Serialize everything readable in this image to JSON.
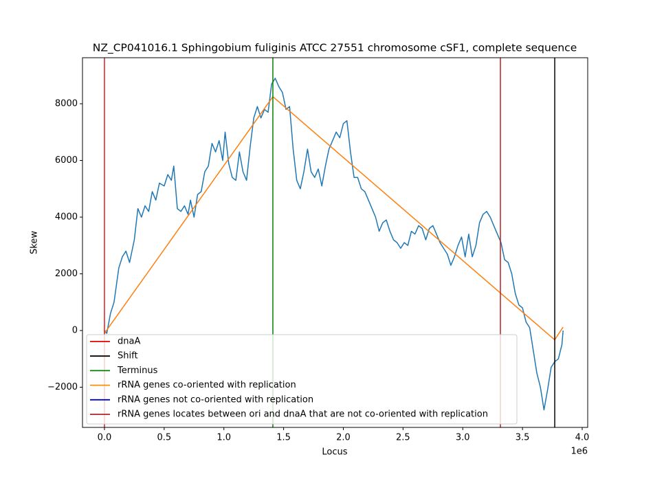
{
  "chart_data": {
    "type": "line",
    "title": "NZ_CP041016.1 Sphingobium fuliginis ATCC 27551 chromosome cSF1, complete sequence",
    "xlabel": "Locus",
    "ylabel": "Skew",
    "x_offset_label": "1e6",
    "xlim": [
      -184000,
      4046000
    ],
    "ylim": [
      -3418,
      9624
    ],
    "xticks": [
      {
        "value": 0,
        "label": "0.0"
      },
      {
        "value": 500000,
        "label": "0.5"
      },
      {
        "value": 1000000,
        "label": "1.0"
      },
      {
        "value": 1500000,
        "label": "1.5"
      },
      {
        "value": 2000000,
        "label": "2.0"
      },
      {
        "value": 2500000,
        "label": "2.5"
      },
      {
        "value": 3000000,
        "label": "3.0"
      },
      {
        "value": 3500000,
        "label": "3.5"
      },
      {
        "value": 4000000,
        "label": "4.0"
      }
    ],
    "yticks": [
      {
        "value": -2000,
        "label": "−2000"
      },
      0,
      2000,
      4000,
      6000,
      8000
    ],
    "series": [
      {
        "color": "#1f77b4",
        "x": [
          0,
          20000,
          50000,
          80000,
          120000,
          150000,
          180000,
          210000,
          250000,
          280000,
          310000,
          340000,
          370000,
          400000,
          430000,
          460000,
          500000,
          530000,
          560000,
          580000,
          610000,
          640000,
          670000,
          700000,
          720000,
          750000,
          780000,
          810000,
          840000,
          870000,
          900000,
          930000,
          960000,
          990000,
          1010000,
          1040000,
          1070000,
          1100000,
          1130000,
          1160000,
          1190000,
          1220000,
          1250000,
          1280000,
          1310000,
          1340000,
          1370000,
          1400000,
          1430000,
          1460000,
          1490000,
          1520000,
          1550000,
          1580000,
          1610000,
          1640000,
          1670000,
          1700000,
          1730000,
          1760000,
          1790000,
          1820000,
          1850000,
          1880000,
          1910000,
          1940000,
          1970000,
          2000000,
          2030000,
          2060000,
          2090000,
          2120000,
          2150000,
          2180000,
          2210000,
          2240000,
          2270000,
          2300000,
          2330000,
          2360000,
          2390000,
          2420000,
          2450000,
          2480000,
          2510000,
          2540000,
          2570000,
          2600000,
          2630000,
          2660000,
          2690000,
          2720000,
          2750000,
          2780000,
          2810000,
          2840000,
          2870000,
          2900000,
          2930000,
          2960000,
          2990000,
          3020000,
          3050000,
          3080000,
          3110000,
          3140000,
          3170000,
          3200000,
          3230000,
          3260000,
          3290000,
          3320000,
          3350000,
          3380000,
          3410000,
          3440000,
          3470000,
          3500000,
          3530000,
          3560000,
          3590000,
          3620000,
          3650000,
          3680000,
          3710000,
          3740000,
          3770000,
          3800000,
          3830000,
          3840000
        ],
        "values": [
          0,
          -100,
          600,
          1000,
          2200,
          2600,
          2800,
          2400,
          3200,
          4300,
          4000,
          4400,
          4200,
          4900,
          4600,
          5200,
          5100,
          5500,
          5300,
          5800,
          4300,
          4200,
          4400,
          4100,
          4600,
          4000,
          4800,
          4900,
          5600,
          5800,
          6600,
          6300,
          6700,
          6000,
          7000,
          5900,
          5400,
          5300,
          6300,
          5600,
          5300,
          6500,
          7500,
          7900,
          7500,
          7800,
          7700,
          8700,
          8900,
          8600,
          8400,
          7800,
          7900,
          6400,
          5300,
          5000,
          5600,
          6400,
          5600,
          5400,
          5700,
          5100,
          5800,
          6400,
          6700,
          7000,
          6800,
          7300,
          7400,
          6300,
          5400,
          5400,
          5000,
          4900,
          4600,
          4300,
          4000,
          3500,
          3800,
          3900,
          3500,
          3200,
          3100,
          2900,
          3100,
          3000,
          3500,
          3400,
          3700,
          3600,
          3200,
          3600,
          3700,
          3400,
          3100,
          2900,
          2700,
          2300,
          2600,
          3000,
          3300,
          2600,
          3400,
          2600,
          3000,
          3800,
          4100,
          4200,
          4000,
          3700,
          3400,
          3100,
          2500,
          2400,
          2000,
          1300,
          900,
          800,
          300,
          100,
          -700,
          -1500,
          -2000,
          -2800,
          -2100,
          -1300,
          -1100,
          -1000,
          -500,
          0
        ]
      },
      {
        "color": "#ff7f0e",
        "x": [
          0,
          1410000,
          3770000,
          3840000
        ],
        "values": [
          -100,
          8250,
          -330,
          120
        ]
      }
    ],
    "vlines": [
      {
        "x": 0,
        "color": "#d62020"
      },
      {
        "x": 3770000,
        "color": "#000000"
      },
      {
        "x": 1410000,
        "color": "#008000"
      },
      {
        "x": 3315000,
        "color": "#b22222"
      }
    ],
    "legend": [
      {
        "label": "dnaA",
        "color": "#e00000"
      },
      {
        "label": "Shift",
        "color": "#000000"
      },
      {
        "label": "Terminus",
        "color": "#008000"
      },
      {
        "label": "rRNA genes co-oriented with replication",
        "color": "#ff8c00"
      },
      {
        "label": "rRNA genes not co-oriented with replication",
        "color": "#0000cd"
      },
      {
        "label": "rRNA genes locates between ori and dnaA that are not co-oriented with replication",
        "color": "#b22222"
      }
    ],
    "legend_loc": "lower left"
  }
}
